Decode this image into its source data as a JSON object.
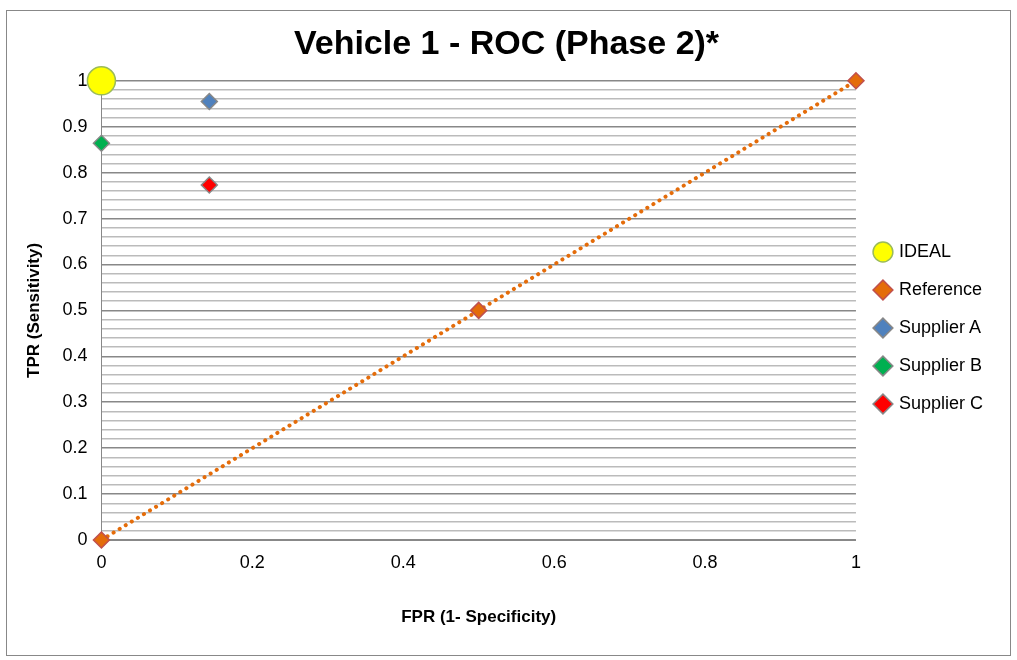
{
  "chart_data": {
    "type": "scatter",
    "title": "Vehicle 1 - ROC (Phase 2)*",
    "xlabel": "FPR (1- Specificity)",
    "ylabel": "TPR (Sensitivity)",
    "xlim": [
      0,
      1
    ],
    "xticks": [
      0,
      0.2,
      0.4,
      0.6,
      0.8,
      1
    ],
    "ylim": [
      0,
      1
    ],
    "yticks": [
      0,
      {
        "value": 0.02,
        "label": null
      },
      {
        "value": 0.04,
        "label": null
      },
      {
        "value": 0.06,
        "label": null
      },
      {
        "value": 0.08,
        "label": null
      },
      0.1,
      {
        "value": 0.12,
        "label": null
      },
      {
        "value": 0.14,
        "label": null
      },
      {
        "value": 0.16,
        "label": null
      },
      {
        "value": 0.18,
        "label": null
      },
      0.2,
      {
        "value": 0.22,
        "label": null
      },
      {
        "value": 0.24,
        "label": null
      },
      {
        "value": 0.26,
        "label": null
      },
      {
        "value": 0.28,
        "label": null
      },
      0.3,
      {
        "value": 0.32,
        "label": null
      },
      {
        "value": 0.34,
        "label": null
      },
      {
        "value": 0.36,
        "label": null
      },
      {
        "value": 0.38,
        "label": null
      },
      0.4,
      {
        "value": 0.42,
        "label": null
      },
      {
        "value": 0.44,
        "label": null
      },
      {
        "value": 0.46,
        "label": null
      },
      {
        "value": 0.48,
        "label": null
      },
      0.5,
      {
        "value": 0.52,
        "label": null
      },
      {
        "value": 0.54,
        "label": null
      },
      {
        "value": 0.56,
        "label": null
      },
      {
        "value": 0.58,
        "label": null
      },
      0.6,
      {
        "value": 0.62,
        "label": null
      },
      {
        "value": 0.64,
        "label": null
      },
      {
        "value": 0.66,
        "label": null
      },
      {
        "value": 0.68,
        "label": null
      },
      0.7,
      {
        "value": 0.72,
        "label": null
      },
      {
        "value": 0.74,
        "label": null
      },
      {
        "value": 0.76,
        "label": null
      },
      {
        "value": 0.78,
        "label": null
      },
      0.8,
      {
        "value": 0.82,
        "label": null
      },
      {
        "value": 0.84,
        "label": null
      },
      {
        "value": 0.86,
        "label": null
      },
      {
        "value": 0.88,
        "label": null
      },
      0.9,
      {
        "value": 0.92,
        "label": null
      },
      {
        "value": 0.94,
        "label": null
      },
      {
        "value": 0.96,
        "label": null
      },
      {
        "value": 0.98,
        "label": null
      },
      1
    ],
    "grid": "y",
    "legend": "right",
    "series": [
      {
        "name": "IDEAL",
        "color": "#ffff00",
        "marker": "circle",
        "x": [
          0
        ],
        "values": [
          1
        ]
      },
      {
        "name": "Reference",
        "type": "line",
        "color": "#e46c0a",
        "marker": "diamond",
        "line_style": "dotted",
        "x": [
          0,
          0.5,
          1
        ],
        "values": [
          0,
          0.5,
          1
        ]
      },
      {
        "name": "Supplier A",
        "color": "#4f81bd",
        "marker": "diamond",
        "x": [
          0.143
        ],
        "values": [
          0.955
        ]
      },
      {
        "name": "Supplier B",
        "color": "#00b050",
        "marker": "diamond",
        "x": [
          0
        ],
        "values": [
          0.864
        ]
      },
      {
        "name": "Supplier C",
        "color": "#ff0000",
        "marker": "diamond",
        "x": [
          0.143
        ],
        "values": [
          0.773
        ]
      }
    ]
  }
}
